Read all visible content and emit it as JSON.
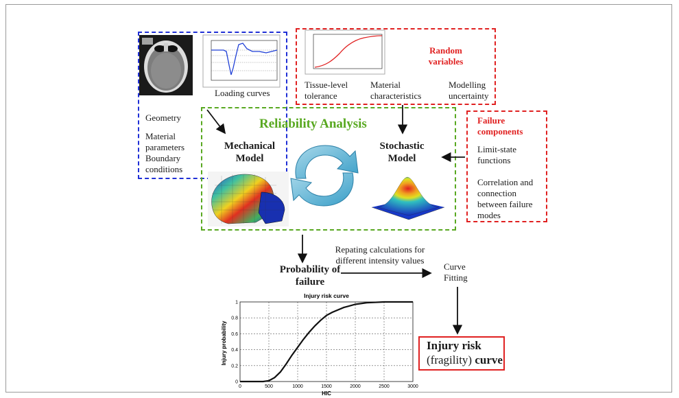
{
  "inputs": {
    "loading_caption": "Loading curves",
    "items": [
      "Geometry",
      "Material parameters",
      "Boundary conditions"
    ]
  },
  "random": {
    "title": "Random variables",
    "items": [
      "Tissue-level tolerance",
      "Material characteristics",
      "Modelling uncertainty"
    ]
  },
  "reliability": {
    "title": "Reliability Analysis",
    "mechanical": "Mechanical Model",
    "stochastic": "Stochastic Model"
  },
  "failure": {
    "title": "Failure components",
    "items": [
      "Limit-state functions",
      "Correlation and connection between failure modes"
    ]
  },
  "flow": {
    "probability": "Probability of failure",
    "repeating": "Repating calculations for different intensity values",
    "curve_fitting": "Curve Fitting",
    "injury_risk_line1": "Injury risk",
    "injury_risk_paren": "(fragility)",
    "injury_risk_word": "curve"
  },
  "chart_data": {
    "type": "line",
    "title": "Injury risk curve",
    "xlabel": "HIC",
    "ylabel": "Injury probability",
    "xlim": [
      0,
      3000
    ],
    "ylim": [
      0,
      1
    ],
    "xticks": [
      0,
      500,
      1000,
      1500,
      2000,
      2500,
      3000
    ],
    "yticks": [
      0,
      0.2,
      0.4,
      0.6,
      0.8,
      1
    ],
    "grid": true,
    "x": [
      0,
      400,
      500,
      600,
      700,
      800,
      900,
      1000,
      1100,
      1200,
      1300,
      1400,
      1500,
      1600,
      1800,
      2000,
      2200,
      2500,
      3000
    ],
    "y": [
      0,
      0,
      0.01,
      0.05,
      0.12,
      0.22,
      0.33,
      0.43,
      0.53,
      0.62,
      0.7,
      0.77,
      0.83,
      0.87,
      0.93,
      0.97,
      0.99,
      1.0,
      1.0
    ]
  }
}
